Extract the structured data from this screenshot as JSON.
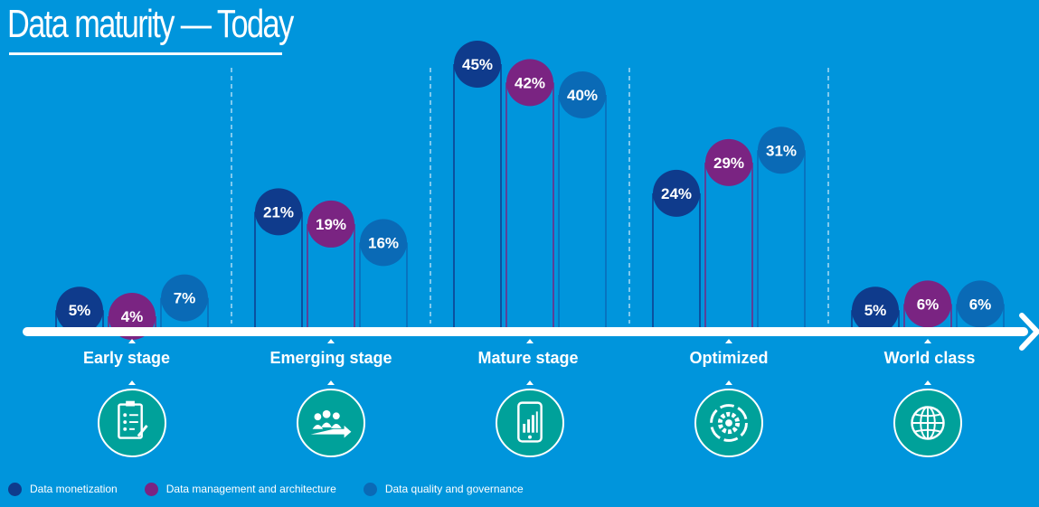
{
  "title": "Data maturity — Today",
  "colors": {
    "background": "#0095DC",
    "data_monetization": "#0F3B8C",
    "data_management": "#7A2482",
    "data_quality": "#0A6AB6",
    "icon_circle": "#00A19A"
  },
  "stages": [
    {
      "label": "Early stage",
      "icon": "checklist-icon"
    },
    {
      "label": "Emerging stage",
      "icon": "team-growth-icon"
    },
    {
      "label": "Mature stage",
      "icon": "mobile-chart-icon"
    },
    {
      "label": "Optimized",
      "icon": "gear-icon"
    },
    {
      "label": "World class",
      "icon": "globe-icon"
    }
  ],
  "legend": [
    {
      "label": "Data monetization",
      "color": "#0F3B8C"
    },
    {
      "label": "Data management and architecture",
      "color": "#7A2482"
    },
    {
      "label": "Data quality and governance",
      "color": "#0A6AB6"
    }
  ],
  "chart_data": {
    "type": "bar",
    "title": "Data maturity — Today",
    "categories": [
      "Early stage",
      "Emerging stage",
      "Mature stage",
      "Optimized",
      "World class"
    ],
    "series": [
      {
        "name": "Data monetization",
        "values": [
          5,
          21,
          45,
          24,
          5
        ],
        "labels": [
          "5%",
          "21%",
          "45%",
          "24%",
          "5%"
        ]
      },
      {
        "name": "Data management and architecture",
        "values": [
          4,
          19,
          42,
          29,
          6
        ],
        "labels": [
          "4%",
          "19%",
          "42%",
          "29%",
          "6%"
        ]
      },
      {
        "name": "Data quality and governance",
        "values": [
          7,
          16,
          40,
          31,
          6
        ],
        "labels": [
          "7%",
          "16%",
          "40%",
          "31%",
          "6%"
        ]
      }
    ],
    "unit": "%",
    "ylim": [
      0,
      45
    ],
    "grid": false,
    "legend_position": "bottom-left"
  }
}
